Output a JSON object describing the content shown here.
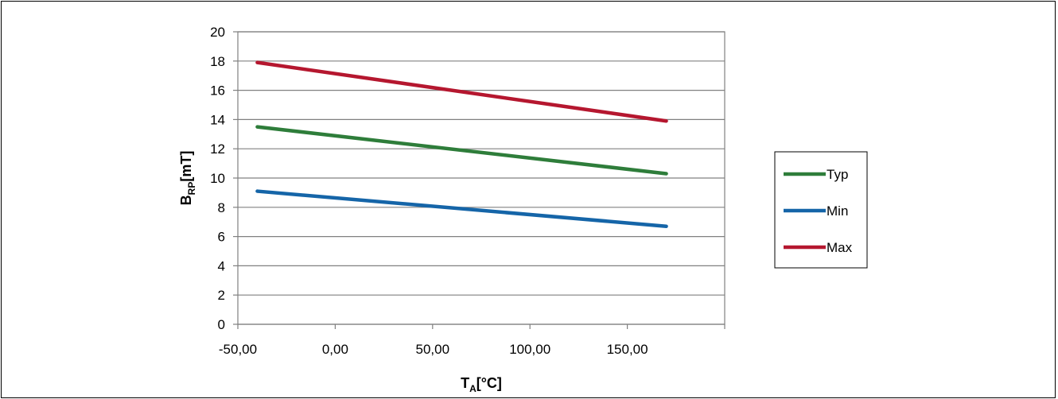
{
  "chart_data": {
    "type": "line",
    "title": "",
    "xlabel": {
      "main": "T",
      "sub": "A",
      "rest": "[°C]"
    },
    "ylabel": {
      "main": "B",
      "sub": "RP",
      "rest": "[mT]"
    },
    "xlim": [
      -50,
      200
    ],
    "ylim": [
      0,
      20
    ],
    "xticks": [
      -50,
      0,
      50,
      100,
      150
    ],
    "xtick_labels": [
      "-50,00",
      "0,00",
      "50,00",
      "100,00",
      "150,00"
    ],
    "yticks": [
      0,
      2,
      4,
      6,
      8,
      10,
      12,
      14,
      16,
      18,
      20
    ],
    "ytick_labels": [
      "0",
      "2",
      "4",
      "6",
      "8",
      "10",
      "12",
      "14",
      "16",
      "18",
      "20"
    ],
    "grid": "horizontal",
    "legend_position": "right",
    "series": [
      {
        "name": "Typ",
        "color": "#2E7D3A",
        "x": [
          -40,
          170
        ],
        "y": [
          13.5,
          10.3
        ]
      },
      {
        "name": "Min",
        "color": "#1565A8",
        "x": [
          -40,
          170
        ],
        "y": [
          9.1,
          6.7
        ]
      },
      {
        "name": "Max",
        "color": "#B5172F",
        "x": [
          -40,
          170
        ],
        "y": [
          17.9,
          13.9
        ]
      }
    ]
  }
}
